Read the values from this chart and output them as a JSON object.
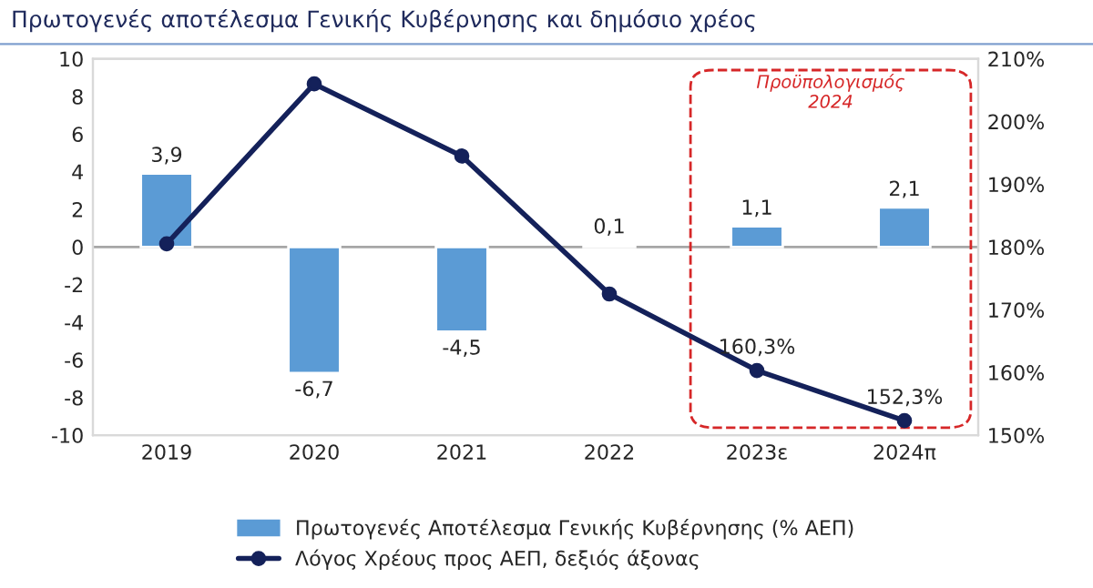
{
  "chart_data": {
    "type": "bar",
    "title": "Πρωτογενές αποτέλεσμα Γενικής Κυβέρνησης και δημόσιο χρέος",
    "categories": [
      "2019",
      "2020",
      "2021",
      "2022",
      "2023ε",
      "2024π"
    ],
    "series": [
      {
        "name": "Πρωτογενές Αποτέλεσμα Γενικής Κυβέρνησης (% ΑΕΠ)",
        "color": "#5b9bd5",
        "values": [
          3.9,
          -6.7,
          -4.5,
          0.1,
          1.1,
          2.1
        ],
        "value_labels": [
          "3,9",
          "-6,7",
          "-4,5",
          "0,1",
          "1,1",
          "2,1"
        ]
      },
      {
        "name": "Λόγος Χρέους προς ΑΕΠ, δεξιός άξονας",
        "type": "line",
        "axis": "y2",
        "color": "#14215a",
        "values": [
          180.5,
          206.0,
          194.5,
          172.5,
          160.3,
          152.3
        ],
        "value_labels": [
          null,
          null,
          null,
          null,
          "160,3%",
          "152,3%"
        ]
      }
    ],
    "ylim": [
      -10,
      10
    ],
    "yticks": [
      -10,
      -8,
      -6,
      -4,
      -2,
      0,
      2,
      4,
      6,
      8,
      10
    ],
    "y2lim": [
      150,
      210
    ],
    "y2ticks": [
      {
        "value": 150,
        "label": "150%"
      },
      {
        "value": 160,
        "label": "160%"
      },
      {
        "value": 170,
        "label": "170%"
      },
      {
        "value": 180,
        "label": "180%"
      },
      {
        "value": 190,
        "label": "190%"
      },
      {
        "value": 200,
        "label": "200%"
      },
      {
        "value": 210,
        "label": "210%"
      }
    ],
    "ref_lines": [
      {
        "axis": "y",
        "value": 0,
        "color": "#a6a6a6"
      }
    ],
    "annotations": [
      "Προϋπολογισμός\n2024"
    ],
    "marker": "circle",
    "line_style": "solid",
    "grid": false,
    "legend": "bottom"
  }
}
